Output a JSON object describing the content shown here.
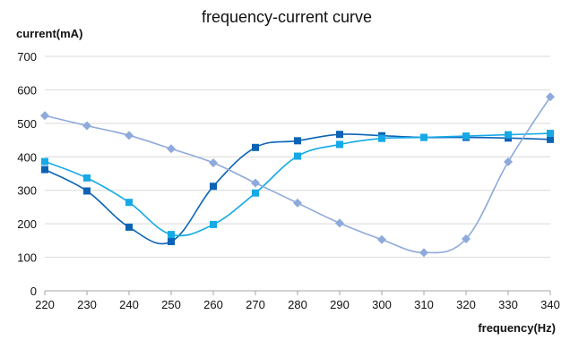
{
  "chart_data": {
    "type": "line",
    "title": "frequency-current curve",
    "xlabel": "frequency(Hz)",
    "ylabel": "current(mA)",
    "x": [
      220,
      230,
      240,
      250,
      260,
      270,
      280,
      290,
      300,
      310,
      320,
      330,
      340
    ],
    "ylim": [
      0,
      700
    ],
    "yticks": [
      0,
      100,
      200,
      300,
      400,
      500,
      600,
      700
    ],
    "grid": true,
    "legend": "none",
    "series": [
      {
        "color": "#0B63B6",
        "marker": "square",
        "values": [
          362,
          298,
          190,
          147,
          312,
          428,
          448,
          467,
          463,
          458,
          458,
          456,
          452
        ]
      },
      {
        "color": "#16A9E6",
        "marker": "square",
        "values": [
          386,
          337,
          264,
          168,
          198,
          292,
          402,
          437,
          455,
          458,
          462,
          466,
          470
        ]
      },
      {
        "color": "#8EA9DB",
        "marker": "diamond",
        "values": [
          523,
          493,
          464,
          424,
          382,
          322,
          262,
          202,
          153,
          114,
          155,
          385,
          579
        ]
      }
    ]
  }
}
